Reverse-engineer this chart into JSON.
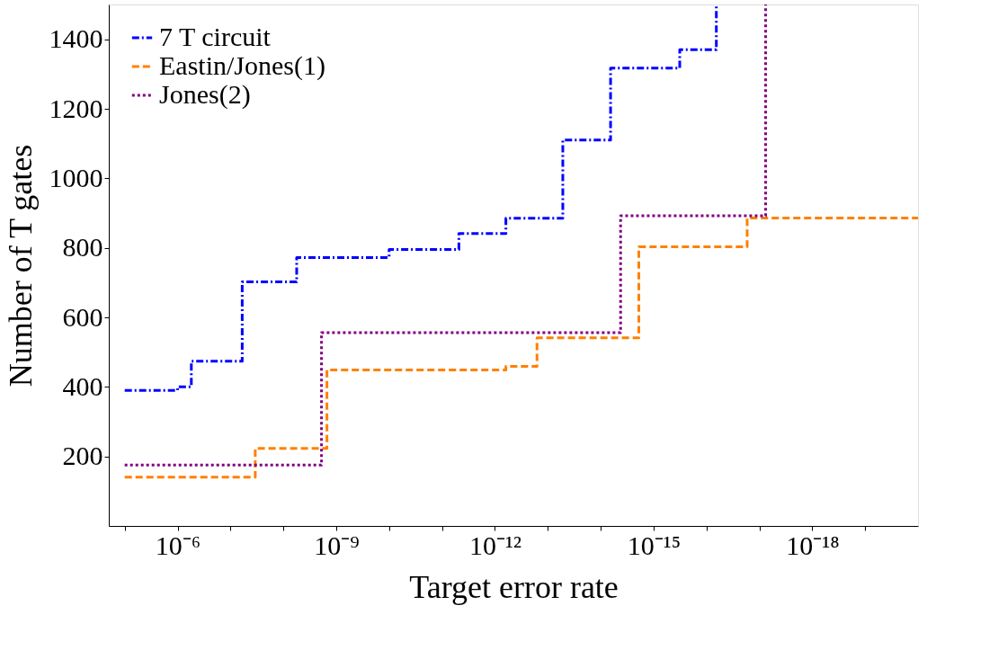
{
  "chart_data": {
    "type": "step",
    "xlabel": "Target error rate",
    "ylabel": "Number of T gates",
    "xlim": [
      2e-05,
      1e-20
    ],
    "ylim": [
      0,
      1500
    ],
    "log": "x",
    "xticks": [
      {
        "value": 1e-05,
        "label": null
      },
      {
        "value": 1e-06,
        "label": "10⁻⁶"
      },
      {
        "value": 1e-07,
        "label": null
      },
      {
        "value": 1e-08,
        "label": null
      },
      {
        "value": 1e-09,
        "label": "10⁻⁹"
      },
      {
        "value": 1e-10,
        "label": null
      },
      {
        "value": 1e-11,
        "label": null
      },
      {
        "value": 1e-12,
        "label": "10⁻¹²"
      },
      {
        "value": 1e-13,
        "label": null
      },
      {
        "value": 1e-14,
        "label": null
      },
      {
        "value": 1e-15,
        "label": "10⁻¹⁵"
      },
      {
        "value": 1e-16,
        "label": null
      },
      {
        "value": 1e-17,
        "label": null
      },
      {
        "value": 1e-18,
        "label": "10⁻¹⁸"
      },
      {
        "value": 1e-19,
        "label": null
      }
    ],
    "yticks": [
      200,
      400,
      600,
      800,
      1000,
      1200,
      1400
    ],
    "grid": false,
    "legend": "top left",
    "marker": "none",
    "series": [
      {
        "name": "7 T circuit",
        "color": "#0000ff",
        "line_style": "dashdot",
        "x": [
          1e-05,
          1e-06,
          5.5e-07,
          6e-08,
          5.6e-09,
          1e-10,
          4.8e-12,
          6.2e-13,
          5.2e-14,
          6.5e-15,
          3.2e-16,
          6.5e-17
        ],
        "values": [
          390,
          400,
          474,
          702,
          772,
          795,
          841,
          885,
          1110,
          1317,
          1370,
          1500
        ]
      },
      {
        "name": "Eastin/Jones(1)",
        "color": "#ff8000",
        "line_style": "dashed",
        "x": [
          1e-05,
          3.4e-08,
          1.5e-09,
          6.2e-13,
          1.6e-13,
          1.9e-15,
          1.7e-17,
          1e-20
        ],
        "values": [
          140,
          223,
          449,
          459,
          541,
          803,
          886,
          886
        ]
      },
      {
        "name": "Jones(2)",
        "color": "#800080",
        "line_style": "dotted",
        "x": [
          1e-05,
          1.9e-09,
          4.2e-15,
          7.6e-18
        ],
        "values": [
          175,
          556,
          892,
          1500
        ]
      }
    ]
  }
}
